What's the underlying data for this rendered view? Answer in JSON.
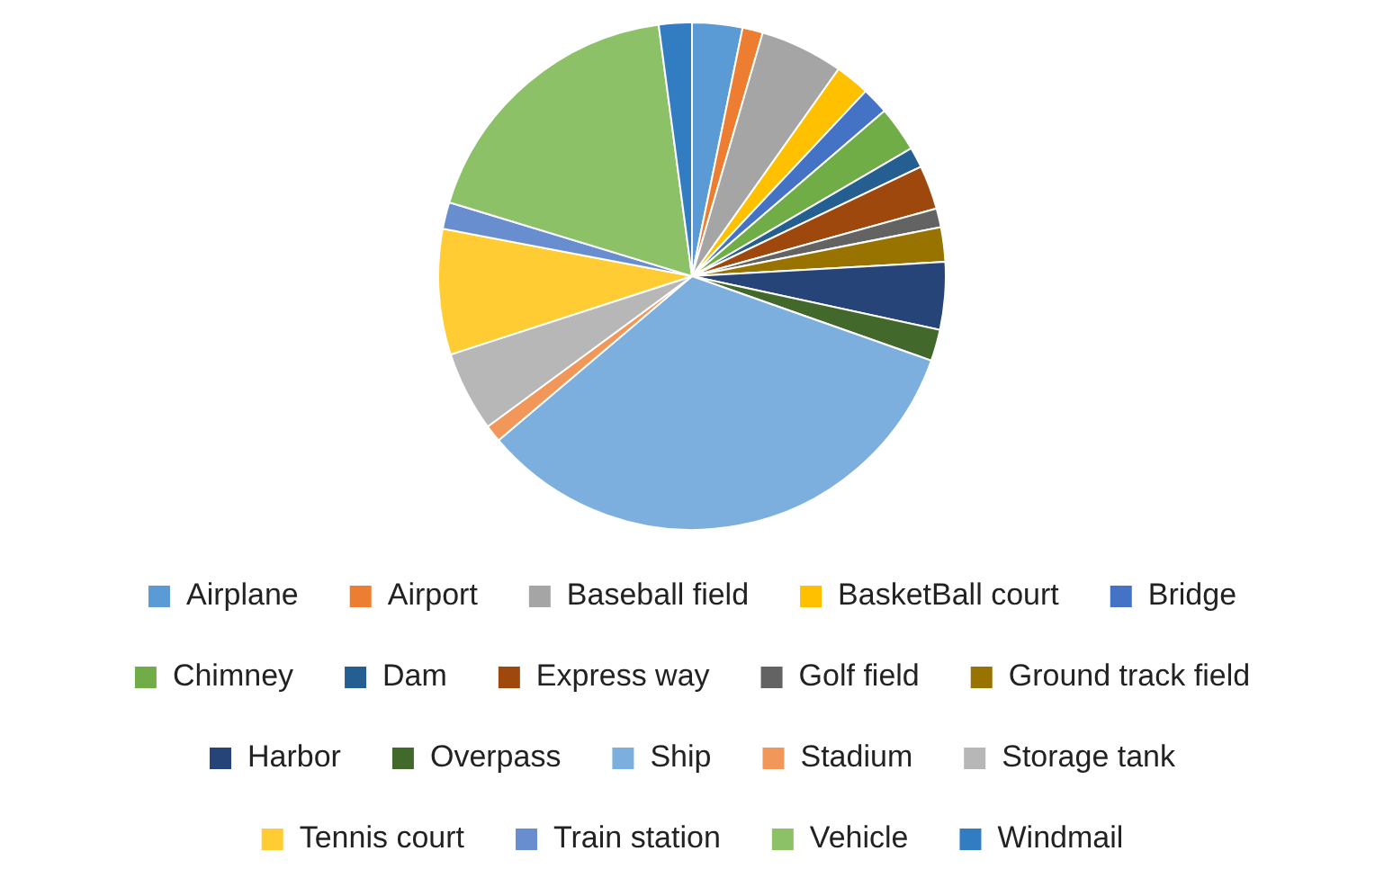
{
  "chart_data": {
    "type": "pie",
    "categories": [
      "Airplane",
      "Airport",
      "Baseball field",
      "BasketBall court",
      "Bridge",
      "Chimney",
      "Dam",
      "Express way",
      "Golf field",
      "Ground track field",
      "Harbor",
      "Overpass",
      "Ship",
      "Stadium",
      "Storage tank",
      "Tennis court",
      "Train station",
      "Vehicle",
      "Windmail"
    ],
    "values": [
      3.2,
      1.3,
      5.3,
      2.2,
      1.7,
      2.9,
      1.3,
      2.8,
      1.2,
      2.2,
      4.3,
      2.0,
      33.4,
      1.1,
      5.1,
      8.0,
      1.7,
      18.2,
      2.1
    ],
    "colors": [
      "#5b9bd5",
      "#ed7d31",
      "#a5a5a5",
      "#ffc000",
      "#4472c4",
      "#70ad47",
      "#255e91",
      "#9e480e",
      "#636363",
      "#997300",
      "#264478",
      "#43682b",
      "#7cafdd",
      "#f1975a",
      "#b7b7b7",
      "#ffcd33",
      "#698ed0",
      "#8cc168",
      "#327dc2"
    ],
    "legend": "bottom"
  }
}
